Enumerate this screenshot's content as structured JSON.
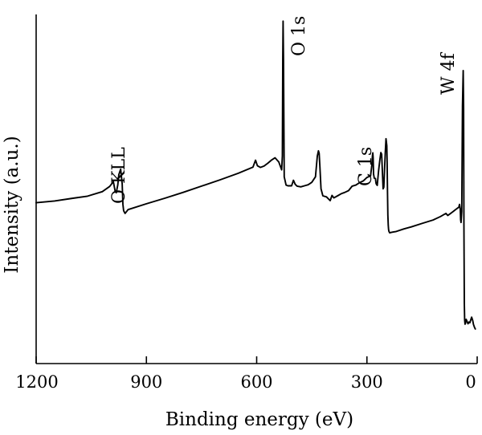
{
  "chart_data": {
    "type": "line",
    "xlabel": "Binding energy (eV)",
    "ylabel": "Intensity (a.u.)",
    "xlim": [
      1200,
      0
    ],
    "x_reversed": true,
    "xticks": [
      1200,
      900,
      600,
      300,
      0
    ],
    "xtick_labels": [
      "1200",
      "900",
      "600",
      "300",
      "0"
    ],
    "ylim": [
      0,
      100
    ],
    "y_ticks_shown": false,
    "grid": false,
    "legend": "none",
    "series": [
      {
        "color": "#000000",
        "x": [
          1200,
          1150,
          1100,
          1060,
          1020,
          1000,
          990,
          985,
          982,
          978,
          975,
          970,
          966,
          964,
          962,
          958,
          955,
          950,
          900,
          850,
          800,
          750,
          700,
          650,
          610,
          603,
          598,
          590,
          580,
          570,
          560,
          550,
          540,
          532,
          530,
          529,
          528,
          527,
          525,
          520,
          515,
          505,
          500,
          495,
          490,
          480,
          470,
          460,
          450,
          440,
          435,
          432,
          430,
          428,
          425,
          420,
          410,
          400,
          395,
          390,
          380,
          370,
          360,
          350,
          340,
          330,
          320,
          310,
          300,
          290,
          287,
          285,
          284,
          283,
          282,
          280,
          277,
          275,
          272,
          270,
          268,
          265,
          262,
          260,
          258,
          256,
          254,
          250,
          248,
          246,
          245,
          244,
          243,
          242,
          241,
          240,
          238,
          235,
          230,
          220,
          200,
          180,
          150,
          120,
          100,
          90,
          85,
          80,
          75,
          70,
          65,
          60,
          55,
          50,
          48,
          46,
          45,
          44,
          42,
          40,
          38,
          37,
          36,
          35,
          34,
          33,
          32,
          30,
          28,
          25,
          22,
          20,
          15,
          12,
          10,
          7,
          5
        ],
        "y": [
          46.5,
          47.0,
          47.8,
          48.4,
          49.7,
          51.2,
          52.6,
          49.8,
          49.4,
          51.6,
          54.6,
          56.2,
          52.0,
          46.0,
          44.2,
          43.4,
          43.8,
          44.5,
          46.2,
          47.8,
          49.5,
          51.3,
          53.1,
          55.0,
          56.8,
          58.8,
          57.2,
          56.7,
          57.1,
          57.9,
          58.8,
          59.5,
          58.3,
          56.0,
          60.0,
          88.0,
          99.0,
          88.0,
          54.0,
          51.6,
          51.4,
          51.4,
          53.0,
          51.8,
          51.3,
          51.1,
          51.4,
          51.7,
          52.4,
          54.0,
          60.0,
          61.5,
          60.8,
          57.0,
          50.5,
          48.5,
          48.2,
          47.1,
          48.6,
          47.9,
          48.5,
          49.1,
          49.5,
          50.0,
          51.3,
          51.6,
          52.3,
          52.8,
          53.8,
          54.3,
          57.0,
          60.0,
          60.9,
          59.5,
          54.8,
          53.6,
          53.5,
          52.0,
          51.5,
          53.8,
          56.0,
          58.8,
          61.0,
          60.5,
          55.5,
          50.5,
          51.0,
          61.0,
          65.0,
          63.0,
          58.0,
          49.0,
          43.0,
          40.0,
          38.8,
          38.2,
          37.8,
          37.9,
          38.0,
          38.2,
          38.9,
          39.5,
          40.5,
          41.5,
          42.5,
          43.1,
          43.4,
          42.8,
          43.2,
          43.6,
          44.0,
          44.4,
          44.8,
          45.2,
          46.0,
          44.5,
          41.6,
          40.8,
          44.0,
          74.5,
          84.7,
          74.0,
          40.0,
          17.5,
          12.6,
          11.4,
          11.6,
          12.8,
          12.3,
          11.5,
          12.0,
          11.8,
          13.4,
          12.4,
          11.3,
          10.4,
          10.0
        ]
      }
    ],
    "annotations": [
      {
        "text": "O KLL",
        "x": 975
      },
      {
        "text": "O 1s",
        "x": 528
      },
      {
        "text": "C 1s",
        "x": 285
      },
      {
        "text": "W 4f",
        "x": 37
      }
    ]
  }
}
